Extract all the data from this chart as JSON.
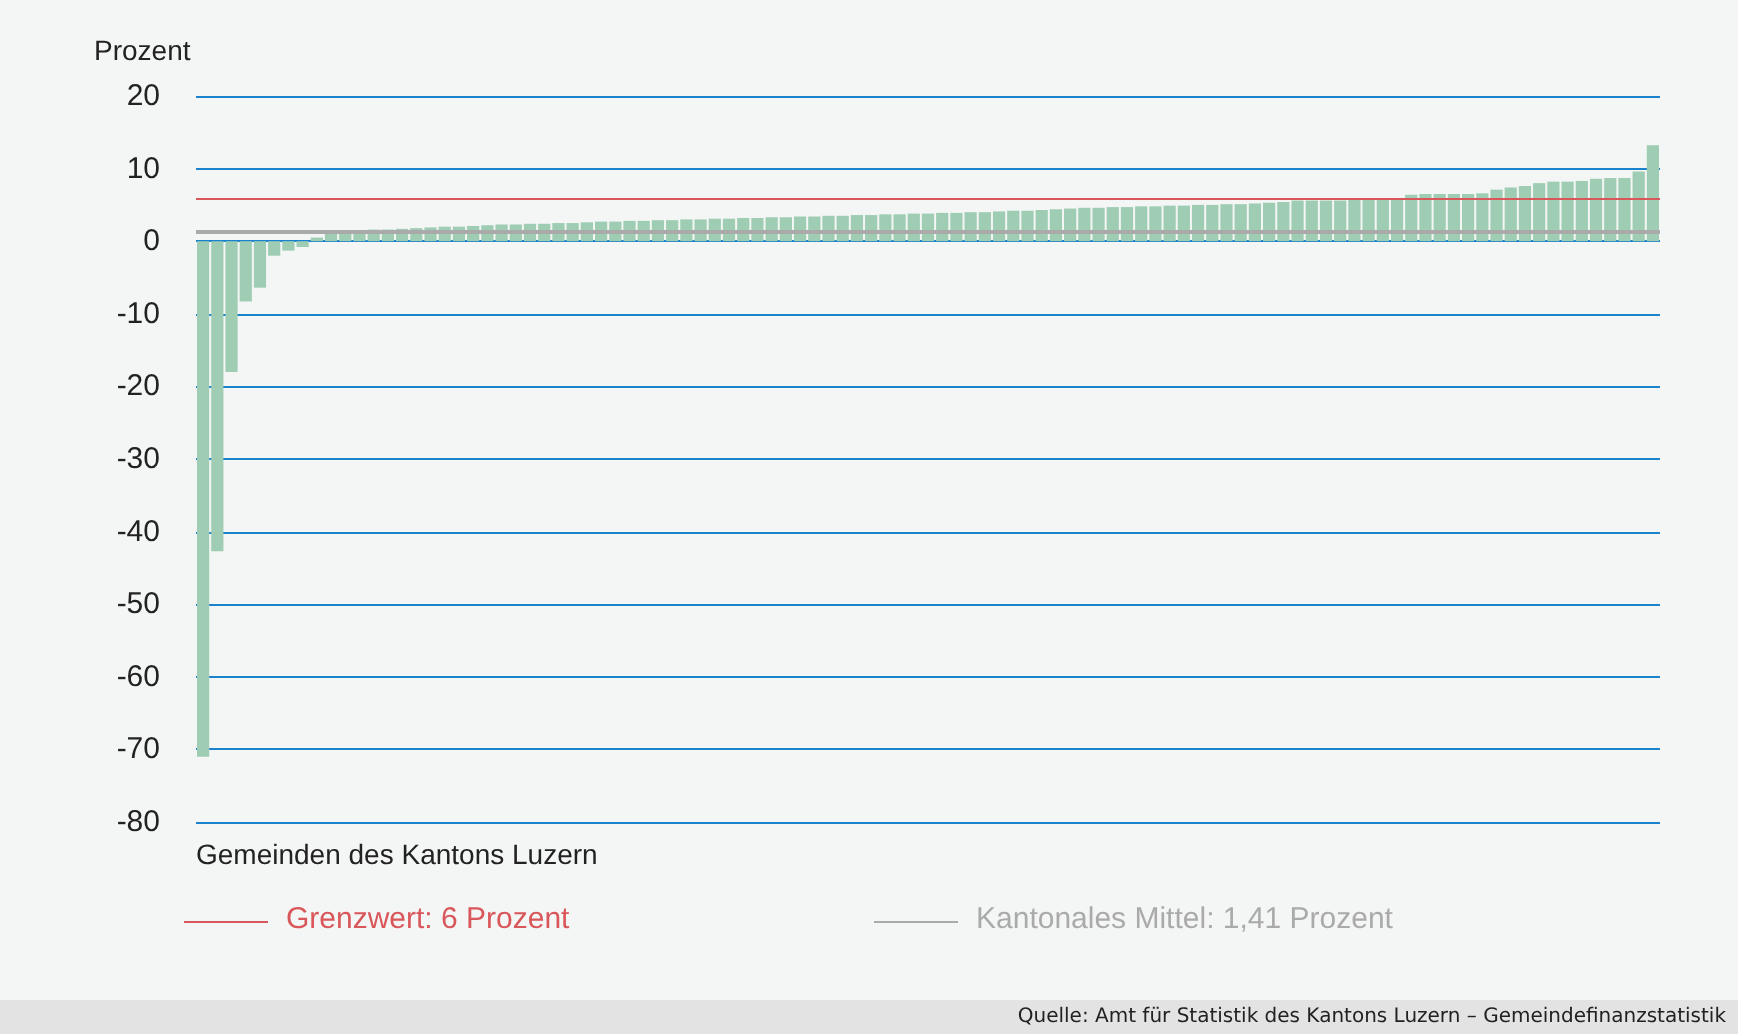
{
  "chart_data": {
    "type": "bar",
    "ylabel": "Prozent",
    "xlabel": "Gemeinden des Kantons Luzern",
    "annotations": [
      "Quelle: Amt für Statistik des Kantons Luzern – Gemeindefinanzstatistik"
    ],
    "categories": [
      null,
      null,
      null,
      null,
      null,
      null,
      null,
      null,
      null,
      null,
      null,
      null,
      null,
      null,
      null,
      null,
      null,
      null,
      null,
      null,
      null,
      null,
      null,
      null,
      null,
      null,
      null,
      null,
      null,
      null,
      null,
      null,
      null,
      null,
      null,
      null,
      null,
      null,
      null,
      null,
      null,
      null,
      null,
      null,
      null,
      null,
      null,
      null,
      null,
      null,
      null,
      null,
      null,
      null,
      null,
      null,
      null,
      null,
      null,
      null,
      null,
      null,
      null,
      null,
      null,
      null,
      null,
      null,
      null,
      null,
      null,
      null,
      null,
      null,
      null,
      null,
      null,
      null,
      null,
      null,
      null,
      null,
      null,
      null,
      null,
      null,
      null,
      null,
      null,
      null,
      null,
      null,
      null,
      null,
      null,
      null,
      null,
      null,
      null,
      null,
      null,
      null,
      null
    ],
    "values": [
      -71,
      -42.7,
      -18,
      -8.3,
      -6.4,
      -2,
      -1.3,
      -0.8,
      0.5,
      1,
      1.3,
      1.5,
      1.6,
      1.6,
      1.7,
      1.8,
      1.9,
      2,
      2,
      2.1,
      2.2,
      2.3,
      2.3,
      2.4,
      2.4,
      2.5,
      2.5,
      2.6,
      2.7,
      2.7,
      2.8,
      2.8,
      2.9,
      2.9,
      3.0,
      3.0,
      3.1,
      3.1,
      3.2,
      3.2,
      3.3,
      3.3,
      3.4,
      3.4,
      3.5,
      3.5,
      3.6,
      3.6,
      3.7,
      3.7,
      3.8,
      3.8,
      3.9,
      3.9,
      4.0,
      4.0,
      4.1,
      4.2,
      4.2,
      4.3,
      4.4,
      4.5,
      4.6,
      4.6,
      4.7,
      4.7,
      4.8,
      4.8,
      4.9,
      4.9,
      5.0,
      5.0,
      5.1,
      5.1,
      5.2,
      5.3,
      5.4,
      5.6,
      5.6,
      5.6,
      5.6,
      5.7,
      5.7,
      5.8,
      5.8,
      6.4,
      6.5,
      6.5,
      6.5,
      6.5,
      6.6,
      7.1,
      7.4,
      7.6,
      8.0,
      8.2,
      8.2,
      8.3,
      8.6,
      8.7,
      8.7,
      9.6,
      13.2
    ],
    "color": "#9fcdb3",
    "ylim": [
      -80,
      20
    ],
    "yticks": [
      -80,
      -70,
      -60,
      -50,
      -40,
      -30,
      -20,
      -10,
      0,
      10,
      20
    ],
    "grid": "y",
    "legend": "bottom",
    "ref_lines": [
      {
        "axis": "y",
        "value": 6,
        "label": "Grenzwert: 6 Prozent",
        "color": "#d9575a"
      },
      {
        "axis": "y",
        "value": 1.41,
        "label": "Kantonales Mittel: 1,41 Prozent",
        "color": "#aaaaaa"
      }
    ]
  }
}
